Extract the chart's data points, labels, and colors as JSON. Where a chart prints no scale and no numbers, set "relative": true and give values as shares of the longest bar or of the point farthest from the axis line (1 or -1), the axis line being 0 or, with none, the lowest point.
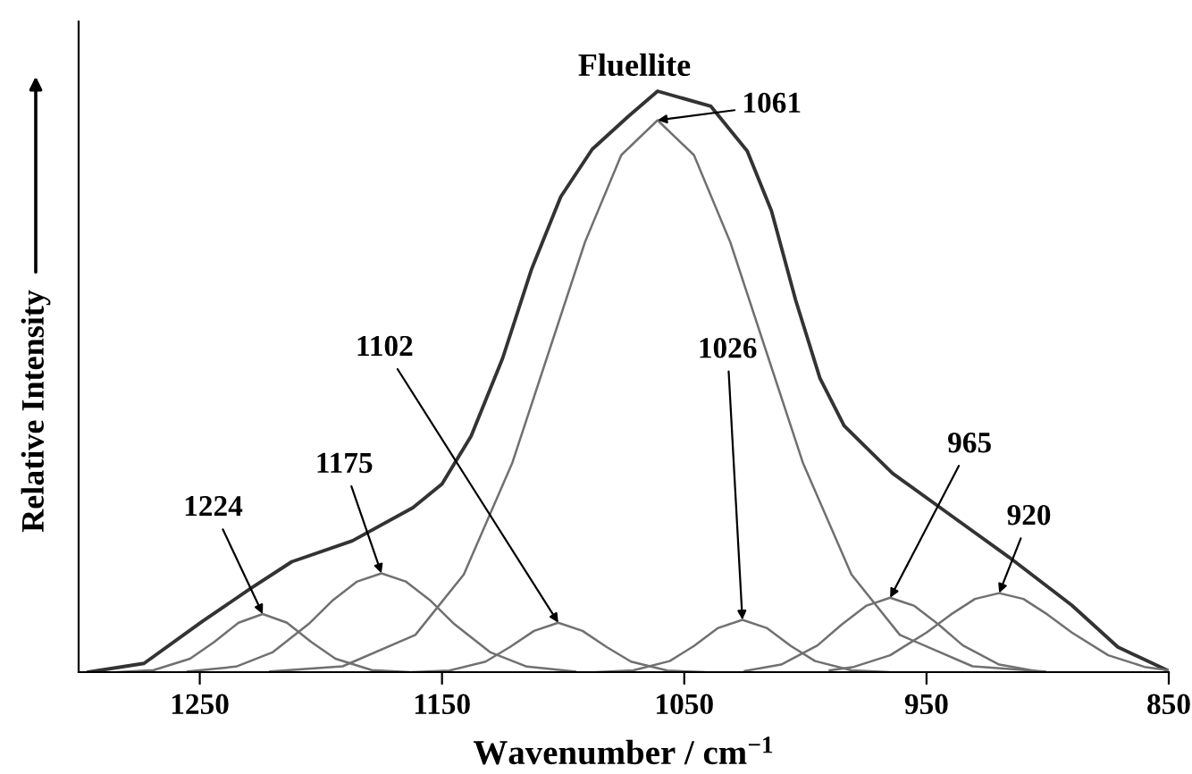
{
  "chart_data": {
    "type": "line",
    "relative": true,
    "title": "Fluellite",
    "xlabel": "Wavenumber / cm$^{−1}$",
    "ylabel": "Relative Intensity",
    "xlim": [
      1300,
      850
    ],
    "xticks": [
      1250,
      1150,
      1050,
      950,
      850
    ],
    "grid": false,
    "legend": false,
    "marker": "none",
    "line_style": "solid",
    "series": [
      {
        "color": "#333333",
        "x": [
          1296,
          1273,
          1249,
          1229,
          1212,
          1187,
          1162,
          1150,
          1138,
          1125,
          1113,
          1101,
          1088,
          1073,
          1061,
          1039,
          1024,
          1014,
          1004,
          994,
          984,
          964,
          940,
          916,
          890,
          871,
          851
        ],
        "values": [
          0,
          0.015,
          0.087,
          0.144,
          0.19,
          0.226,
          0.283,
          0.324,
          0.406,
          0.54,
          0.694,
          0.818,
          0.9,
          0.957,
          1.0,
          0.974,
          0.897,
          0.794,
          0.64,
          0.506,
          0.424,
          0.342,
          0.27,
          0.198,
          0.115,
          0.043,
          0.004
        ]
      },
      {
        "color": "#707070",
        "x": [
          1284,
          1269,
          1254,
          1244,
          1234,
          1224,
          1214,
          1204,
          1194,
          1179,
          1164
        ],
        "values": [
          0,
          0.0035,
          0.023,
          0.052,
          0.085,
          0.1,
          0.085,
          0.052,
          0.023,
          0.0035,
          0
        ]
      },
      {
        "color": "#707070",
        "x": [
          1255,
          1235,
          1220,
          1205,
          1195,
          1185,
          1175,
          1165,
          1155,
          1145,
          1130,
          1115,
          1095
        ],
        "values": [
          0.001,
          0.0095,
          0.034,
          0.083,
          0.124,
          0.156,
          0.17,
          0.156,
          0.124,
          0.083,
          0.034,
          0.0095,
          0.001
        ]
      },
      {
        "color": "#707070",
        "x": [
          1162,
          1147,
          1132,
          1122,
          1112,
          1102,
          1092,
          1082,
          1072,
          1057,
          1042
        ],
        "values": [
          0,
          0.0026,
          0.018,
          0.043,
          0.071,
          0.085,
          0.071,
          0.043,
          0.018,
          0.0026,
          0
        ]
      },
      {
        "color": "#707070",
        "x": [
          1221,
          1191,
          1161,
          1141,
          1121,
          1106,
          1091,
          1076,
          1061,
          1046,
          1031,
          1016,
          1001,
          981,
          961,
          931,
          901
        ],
        "values": [
          0.001,
          0.01,
          0.064,
          0.168,
          0.36,
          0.55,
          0.74,
          0.89,
          0.95,
          0.89,
          0.74,
          0.55,
          0.36,
          0.168,
          0.064,
          0.01,
          0.001
        ]
      },
      {
        "color": "#707070",
        "x": [
          1086,
          1071,
          1056,
          1046,
          1036,
          1026,
          1016,
          1006,
          996,
          981,
          966
        ],
        "values": [
          0,
          0.003,
          0.019,
          0.045,
          0.076,
          0.09,
          0.076,
          0.045,
          0.019,
          0.003,
          0
        ]
      },
      {
        "color": "#707070",
        "x": [
          1025,
          1010,
          995,
          985,
          975,
          965,
          955,
          945,
          935,
          920,
          905
        ],
        "values": [
          0.002,
          0.013,
          0.046,
          0.082,
          0.114,
          0.128,
          0.114,
          0.082,
          0.046,
          0.013,
          0.002
        ]
      },
      {
        "color": "#707070",
        "x": [
          990,
          980,
          965,
          950,
          940,
          930,
          920,
          910,
          900,
          890,
          875,
          860,
          850
        ],
        "values": [
          0.003,
          0.009,
          0.029,
          0.068,
          0.099,
          0.126,
          0.136,
          0.126,
          0.099,
          0.068,
          0.029,
          0.009,
          0.003
        ]
      }
    ],
    "annotations": [
      {
        "text": "1224",
        "x": 1224,
        "y": 0.1
      },
      {
        "text": "1175",
        "x": 1175,
        "y": 0.17
      },
      {
        "text": "1102",
        "x": 1102,
        "y": 0.085
      },
      {
        "text": "1061",
        "x": 1061,
        "y": 0.95
      },
      {
        "text": "1026",
        "x": 1026,
        "y": 0.09
      },
      {
        "text": "965",
        "x": 965,
        "y": 0.128
      },
      {
        "text": "920",
        "x": 920,
        "y": 0.136
      }
    ]
  }
}
